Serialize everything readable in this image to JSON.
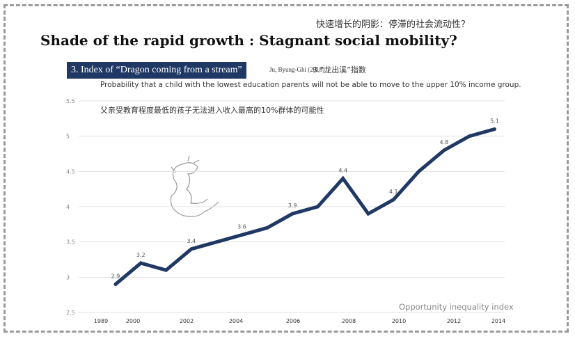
{
  "header": {
    "cn_title": "快速增长的阴影：停滞的社会流动性？",
    "title": "Shade of the rapid growth : Stagnant social mobility?"
  },
  "section": {
    "badge": "3. Index of “Dragon coming from a stream”",
    "reference": "Ju, Byung-Ghi (2018)",
    "cn_label": "3.“龙出溪”指数",
    "description": "Probability that a child with the lowest education parents will not be able to move to the upper 10% income group.",
    "description_cn": "父亲受教育程度最低的孩子无法进入收入最高的10%群体的可能性"
  },
  "colors": {
    "line": "#1f3864",
    "grid": "#e0e0e0"
  },
  "chart_data": {
    "type": "line",
    "title": "Opportunity inequality index",
    "ylim": [
      2.5,
      5.5
    ],
    "yticks": [
      "2.5",
      "3",
      "3.5",
      "4",
      "4.5",
      "5",
      "5.5"
    ],
    "xtick_labels": [
      "1989",
      "2000",
      "2002",
      "2004",
      "2006",
      "2008",
      "2010",
      "2012",
      "2014"
    ],
    "values": [
      2.9,
      3.2,
      3.1,
      3.4,
      3.5,
      3.6,
      3.7,
      3.9,
      4.0,
      4.4,
      3.9,
      4.1,
      4.5,
      4.8,
      5.0,
      5.1
    ],
    "data_labels": [
      {
        "index": 0,
        "text": "2.9"
      },
      {
        "index": 1,
        "text": "3.2"
      },
      {
        "index": 3,
        "text": "3.4"
      },
      {
        "index": 5,
        "text": "3.6"
      },
      {
        "index": 7,
        "text": "3.9"
      },
      {
        "index": 9,
        "text": "4.4"
      },
      {
        "index": 11,
        "text": "4.1"
      },
      {
        "index": 13,
        "text": "4.8"
      },
      {
        "index": 15,
        "text": "5.1"
      }
    ],
    "grid": true
  }
}
